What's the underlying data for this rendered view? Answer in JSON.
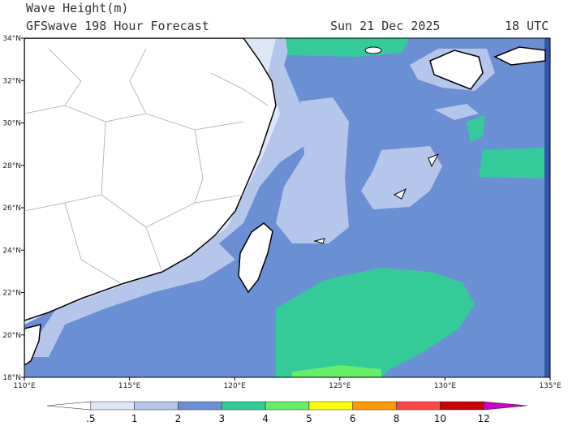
{
  "header": {
    "title": "Wave Height(m)",
    "subtitle": "GFSwave 198 Hour Forecast",
    "date": "Sun 21 Dec 2025",
    "time": "18 UTC"
  },
  "map": {
    "lat_ticks": [
      {
        "value": 34,
        "label": "34°N"
      },
      {
        "value": 32,
        "label": "32°N"
      },
      {
        "value": 30,
        "label": "30°N"
      },
      {
        "value": 28,
        "label": "28°N"
      },
      {
        "value": 26,
        "label": "26°N"
      },
      {
        "value": 24,
        "label": "24°N"
      },
      {
        "value": 22,
        "label": "22°N"
      },
      {
        "value": 20,
        "label": "20°N"
      },
      {
        "value": 18,
        "label": "18°N"
      }
    ],
    "lon_ticks": [
      {
        "value": 110,
        "label": "110°E"
      },
      {
        "value": 115,
        "label": "115°E"
      },
      {
        "value": 120,
        "label": "120°E"
      },
      {
        "value": 125,
        "label": "125°E"
      },
      {
        "value": 130,
        "label": "130°E"
      },
      {
        "value": 135,
        "label": "135°E"
      }
    ]
  },
  "colorbar": {
    "labels": [
      ".5",
      "1",
      "2",
      "3",
      "4",
      "5",
      "6",
      "8",
      "10",
      "12"
    ],
    "colors": [
      "#ffffff",
      "#dde6f6",
      "#b4c6ea",
      "#6b8fd4",
      "#33cc99",
      "#66ee66",
      "#ffff00",
      "#ff9900",
      "#ff4444",
      "#cc0000",
      "#cc00cc"
    ]
  }
}
